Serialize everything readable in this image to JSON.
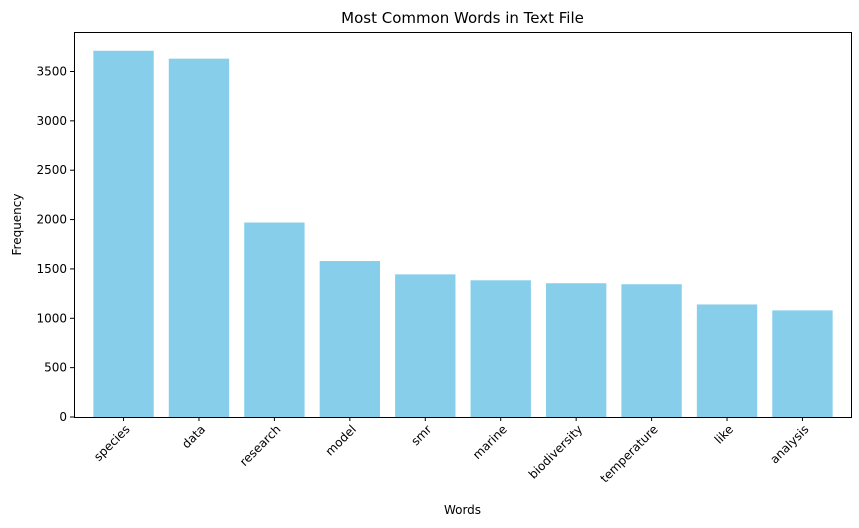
{
  "chart_data": {
    "type": "bar",
    "title": "Most Common Words in Text File",
    "xlabel": "Words",
    "ylabel": "Frequency",
    "categories": [
      "species",
      "data",
      "research",
      "model",
      "smr",
      "marine",
      "biodiversity",
      "temperature",
      "like",
      "analysis"
    ],
    "values": [
      3710,
      3630,
      1970,
      1580,
      1445,
      1385,
      1355,
      1345,
      1140,
      1080
    ],
    "ylim": [
      0,
      3900
    ],
    "yticks": [
      0,
      500,
      1000,
      1500,
      2000,
      2500,
      3000,
      3500
    ],
    "ytick_labels": [
      "0",
      "500",
      "1000",
      "1500",
      "2000",
      "2500",
      "3000",
      "3500"
    ],
    "bar_color": "#87ceeb",
    "grid": false,
    "xtick_rotation": 45
  }
}
